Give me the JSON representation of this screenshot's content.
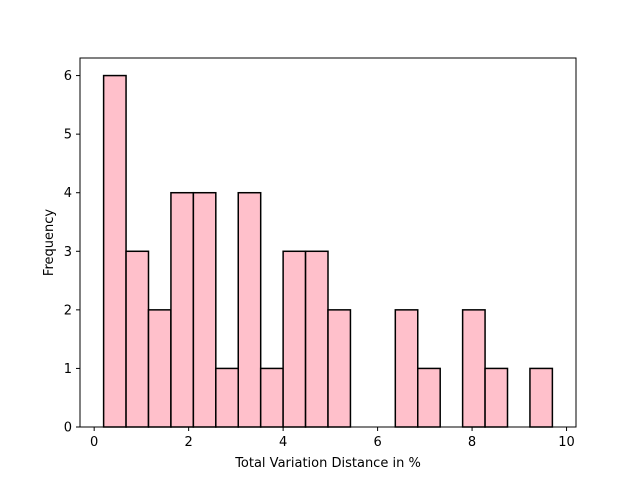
{
  "chart_data": {
    "type": "bar",
    "title": "",
    "xlabel": "Total Variation Distance in %",
    "ylabel": "Frequency",
    "xlim": [
      -0.3,
      10.2
    ],
    "ylim": [
      0,
      6.3
    ],
    "xticks": [
      0,
      2,
      4,
      6,
      8,
      10
    ],
    "yticks": [
      0,
      1,
      2,
      3,
      4,
      5,
      6
    ],
    "bin_edges": [
      0.2,
      0.675,
      1.15,
      1.625,
      2.1,
      2.575,
      3.05,
      3.525,
      4.0,
      4.475,
      4.95,
      5.425,
      5.9,
      6.375,
      6.85,
      7.325,
      7.8,
      8.275,
      8.75,
      9.225,
      9.7
    ],
    "values": [
      6,
      3,
      2,
      4,
      4,
      1,
      4,
      1,
      3,
      3,
      2,
      0,
      0,
      2,
      1,
      0,
      2,
      1,
      0,
      1
    ],
    "bar_color": "#ffc0cb",
    "edge_color": "#000000",
    "grid": false,
    "legend": "none"
  }
}
